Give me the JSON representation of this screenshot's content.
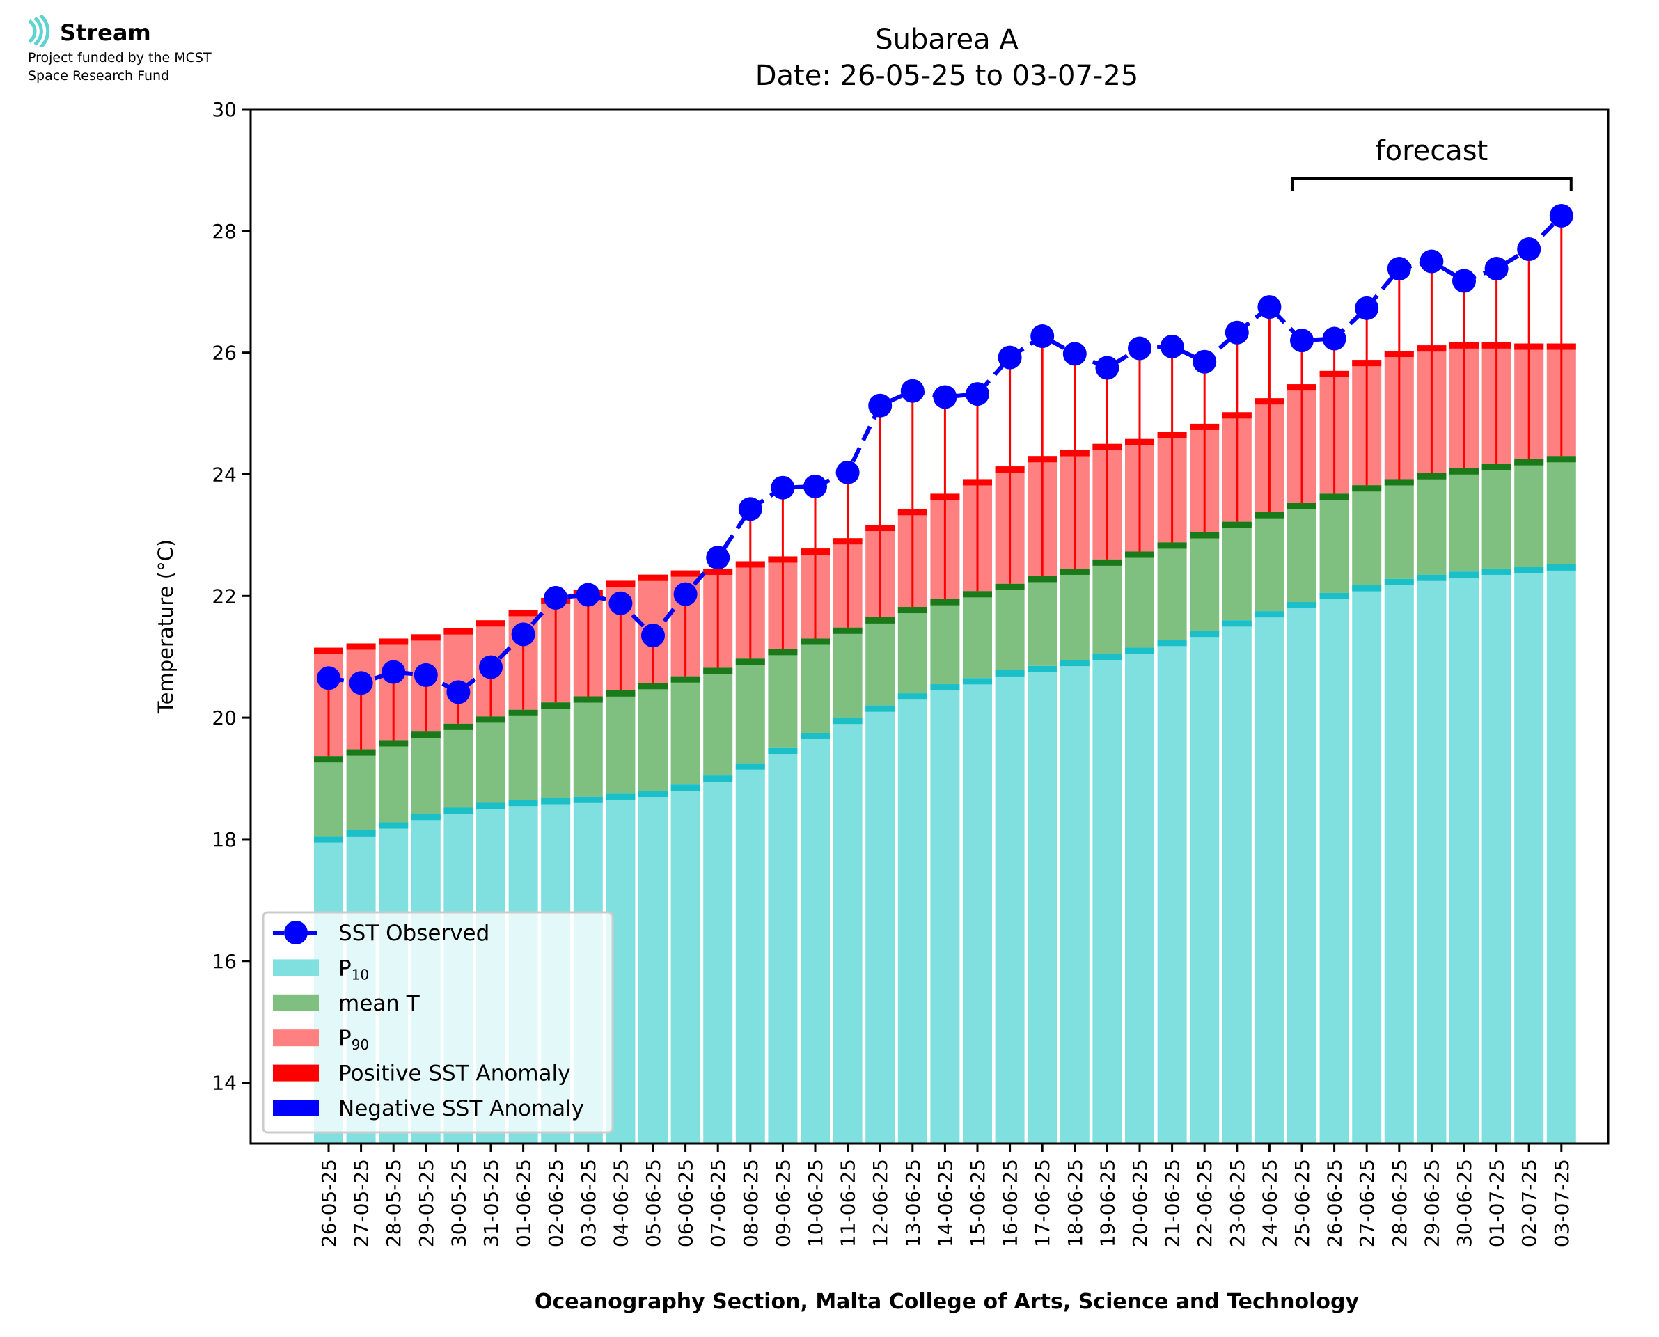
{
  "logo": {
    "name": "Stream",
    "line1": "Project funded by the MCST",
    "line2": "Space Research Fund",
    "icon": "stream-waves-icon",
    "color": "#5fd3d0"
  },
  "chart_data": {
    "type": "bar",
    "title": "Subarea A",
    "subtitle": "Date: 26-05-25 to 03-07-25",
    "xlabel": "Oceanography Section, Malta College of Arts, Science and Technology",
    "ylabel": "Temperature (°C)",
    "ylim": [
      13,
      30
    ],
    "yticks": [
      14,
      16,
      18,
      20,
      22,
      24,
      26,
      28,
      30
    ],
    "grid": false,
    "legend_position": "bottom-left",
    "forecast_label": "forecast",
    "forecast_range": [
      "25-06-25",
      "03-07-25"
    ],
    "categories": [
      "26-05-25",
      "27-05-25",
      "28-05-25",
      "29-05-25",
      "30-05-25",
      "31-05-25",
      "01-06-25",
      "02-06-25",
      "03-06-25",
      "04-06-25",
      "05-06-25",
      "06-06-25",
      "07-06-25",
      "08-06-25",
      "09-06-25",
      "10-06-25",
      "11-06-25",
      "12-06-25",
      "13-06-25",
      "14-06-25",
      "15-06-25",
      "16-06-25",
      "17-06-25",
      "18-06-25",
      "19-06-25",
      "20-06-25",
      "21-06-25",
      "22-06-25",
      "23-06-25",
      "24-06-25",
      "25-06-25",
      "26-06-25",
      "27-06-25",
      "28-06-25",
      "29-06-25",
      "30-06-25",
      "01-07-25",
      "02-07-25",
      "03-07-25"
    ],
    "series": [
      {
        "name": "SST Observed",
        "kind": "line",
        "color": "#0000ff",
        "values": [
          20.65,
          20.57,
          20.75,
          20.7,
          20.42,
          20.83,
          21.37,
          21.97,
          22.02,
          21.88,
          21.35,
          22.03,
          22.63,
          23.43,
          23.78,
          23.8,
          24.03,
          25.13,
          25.37,
          25.27,
          25.32,
          25.92,
          26.27,
          25.98,
          25.75,
          26.07,
          26.1,
          25.85,
          26.33,
          26.75,
          26.2,
          26.23,
          26.73,
          27.38,
          27.5,
          27.18,
          27.38,
          27.7,
          28.25
        ]
      },
      {
        "name": "P10",
        "kind": "bar",
        "color": "#80dfdf",
        "edge_color": "#1bbfc8",
        "values": [
          18.05,
          18.15,
          18.28,
          18.42,
          18.52,
          18.6,
          18.65,
          18.68,
          18.7,
          18.75,
          18.8,
          18.9,
          19.05,
          19.25,
          19.5,
          19.75,
          20.0,
          20.2,
          20.4,
          20.55,
          20.65,
          20.78,
          20.85,
          20.95,
          21.05,
          21.15,
          21.28,
          21.43,
          21.6,
          21.75,
          21.9,
          22.05,
          22.18,
          22.28,
          22.35,
          22.4,
          22.45,
          22.48,
          22.52
        ]
      },
      {
        "name": "mean T",
        "kind": "bar",
        "color": "#7fbf7f",
        "edge_color": "#1a7a1a",
        "values": [
          19.37,
          19.48,
          19.63,
          19.77,
          19.9,
          20.02,
          20.13,
          20.25,
          20.35,
          20.45,
          20.57,
          20.68,
          20.82,
          20.97,
          21.13,
          21.3,
          21.48,
          21.65,
          21.82,
          21.95,
          22.08,
          22.2,
          22.33,
          22.45,
          22.6,
          22.73,
          22.88,
          23.05,
          23.22,
          23.38,
          23.53,
          23.68,
          23.82,
          23.92,
          24.02,
          24.1,
          24.17,
          24.25,
          24.3
        ]
      },
      {
        "name": "P90",
        "kind": "bar",
        "color": "#ff8080",
        "edge_color": "#ff0000",
        "values": [
          21.15,
          21.22,
          21.3,
          21.37,
          21.47,
          21.6,
          21.77,
          21.97,
          22.1,
          22.25,
          22.35,
          22.42,
          22.45,
          22.57,
          22.65,
          22.78,
          22.95,
          23.17,
          23.43,
          23.68,
          23.92,
          24.13,
          24.3,
          24.4,
          24.5,
          24.58,
          24.7,
          24.83,
          25.02,
          25.25,
          25.48,
          25.7,
          25.88,
          26.03,
          26.12,
          26.17,
          26.17,
          26.15,
          26.15
        ]
      }
    ],
    "legend": [
      {
        "label": "SST Observed",
        "symbol": "line-marker",
        "color": "#0000ff"
      },
      {
        "label": "P",
        "sub": "10",
        "symbol": "patch",
        "color": "#80dfdf"
      },
      {
        "label": "mean T",
        "symbol": "patch",
        "color": "#7fbf7f"
      },
      {
        "label": "P",
        "sub": "90",
        "symbol": "patch",
        "color": "#ff8080"
      },
      {
        "label": "Positive SST Anomaly",
        "symbol": "patch",
        "color": "#ff0000"
      },
      {
        "label": "Negative SST Anomaly",
        "symbol": "patch",
        "color": "#0000ff"
      }
    ]
  }
}
